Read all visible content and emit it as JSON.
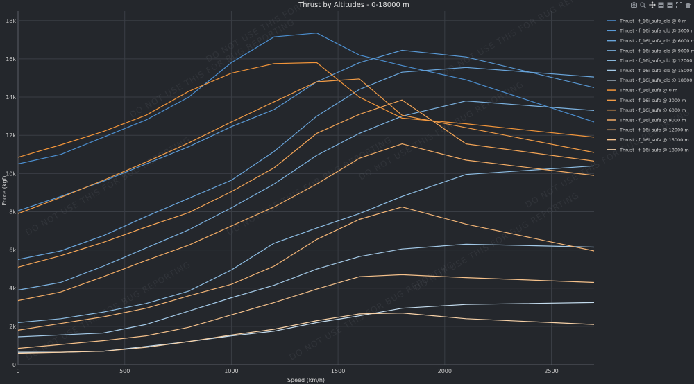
{
  "chart_data": {
    "type": "line",
    "title": "Thrust by Altitudes - 0-18000 m",
    "xlabel": "Speed (km/h)",
    "ylabel": "Force (kgf)",
    "xlim": [
      0,
      2700
    ],
    "ylim": [
      0,
      18500
    ],
    "x_ticks": [
      0,
      500,
      1000,
      1500,
      2000,
      2500
    ],
    "x_tick_labels": [
      "0",
      "500",
      "1000",
      "1500",
      "2000",
      "2500"
    ],
    "y_ticks": [
      0,
      2000,
      4000,
      6000,
      8000,
      10000,
      12000,
      14000,
      16000,
      18000
    ],
    "y_tick_labels": [
      "0",
      "2k",
      "4k",
      "6k",
      "8k",
      "10k",
      "12k",
      "14k",
      "16k",
      "18k"
    ],
    "watermark": "DO NOT USE THIS FOR BUG REPORTING",
    "legend_position": "right",
    "series": [
      {
        "name": "Thrust - f_16i_sufa_old @ 0 m",
        "color": "#4c8fd0",
        "x": [
          0,
          200,
          400,
          600,
          800,
          1000,
          1200,
          1400,
          1600,
          1800,
          2100,
          2700
        ],
        "y": [
          10500,
          11000,
          11900,
          12800,
          14000,
          15800,
          17150,
          17350,
          16200,
          15650,
          14900,
          12700
        ]
      },
      {
        "name": "Thrust - f_16i_sufa_old @ 3000 m",
        "color": "#5a9ad6",
        "x": [
          0,
          200,
          400,
          600,
          800,
          1000,
          1200,
          1400,
          1600,
          1800,
          2100,
          2700
        ],
        "y": [
          8050,
          8800,
          9600,
          10500,
          11400,
          12450,
          13350,
          14800,
          15800,
          16450,
          16100,
          14500
        ]
      },
      {
        "name": "Thrust - f_16i_sufa_old @ 6000 m",
        "color": "#6aa6dc",
        "x": [
          0,
          200,
          400,
          600,
          800,
          1000,
          1200,
          1400,
          1600,
          1800,
          2100,
          2700
        ],
        "y": [
          5500,
          5950,
          6750,
          7750,
          8700,
          9650,
          11150,
          13000,
          14400,
          15300,
          15550,
          15050
        ]
      },
      {
        "name": "Thrust - f_16i_sufa_old @ 9000 m",
        "color": "#7cb2e0",
        "x": [
          0,
          200,
          400,
          600,
          800,
          1000,
          1200,
          1400,
          1600,
          1800,
          2100,
          2700
        ],
        "y": [
          3900,
          4300,
          5150,
          6100,
          7050,
          8200,
          9450,
          10950,
          12100,
          13000,
          13800,
          13300
        ]
      },
      {
        "name": "Thrust - f_16i_sufa_old @ 12000 m",
        "color": "#8ebee4",
        "x": [
          0,
          200,
          400,
          600,
          800,
          1000,
          1200,
          1400,
          1600,
          1800,
          2100,
          2700
        ],
        "y": [
          2200,
          2400,
          2750,
          3200,
          3850,
          4950,
          6350,
          7150,
          7900,
          8800,
          9950,
          10400
        ]
      },
      {
        "name": "Thrust - f_16i_sufa_old @ 15000 m",
        "color": "#a4cae8",
        "x": [
          0,
          200,
          400,
          600,
          800,
          1000,
          1200,
          1400,
          1600,
          1800,
          2100,
          2700
        ],
        "y": [
          1450,
          1550,
          1650,
          2100,
          2800,
          3500,
          4150,
          5000,
          5650,
          6050,
          6300,
          6150
        ]
      },
      {
        "name": "Thrust - f_16i_sufa_old @ 18000 m",
        "color": "#c4dcee",
        "x": [
          0,
          200,
          400,
          600,
          800,
          1000,
          1200,
          1400,
          1600,
          1800,
          2100,
          2700
        ],
        "y": [
          650,
          650,
          700,
          950,
          1200,
          1500,
          1750,
          2200,
          2550,
          2950,
          3150,
          3250
        ]
      },
      {
        "name": "Thrust - f_16i_sufa @ 0 m",
        "color": "#f2953a",
        "x": [
          0,
          200,
          400,
          600,
          800,
          1000,
          1200,
          1400,
          1600,
          1800,
          2100,
          2700
        ],
        "y": [
          10850,
          11500,
          12200,
          13050,
          14300,
          15250,
          15750,
          15800,
          14000,
          12900,
          12600,
          11900
        ]
      },
      {
        "name": "Thrust - f_16i_sufa @ 3000 m",
        "color": "#f29c47",
        "x": [
          0,
          200,
          400,
          600,
          800,
          1000,
          1200,
          1400,
          1600,
          1800,
          2100,
          2700
        ],
        "y": [
          7900,
          8750,
          9650,
          10600,
          11600,
          12700,
          13750,
          14800,
          14950,
          13050,
          12400,
          11100
        ]
      },
      {
        "name": "Thrust - f_16i_sufa @ 6000 m",
        "color": "#f3a456",
        "x": [
          0,
          200,
          400,
          600,
          800,
          1000,
          1200,
          1400,
          1600,
          1800,
          2100,
          2700
        ],
        "y": [
          5100,
          5700,
          6400,
          7200,
          7950,
          9050,
          10300,
          12100,
          13100,
          13850,
          11550,
          10650
        ]
      },
      {
        "name": "Thrust - f_16i_sufa @ 9000 m",
        "color": "#f4ad66",
        "x": [
          0,
          200,
          400,
          600,
          800,
          1000,
          1200,
          1400,
          1600,
          1800,
          2100,
          2700
        ],
        "y": [
          3350,
          3800,
          4600,
          5450,
          6250,
          7250,
          8250,
          9450,
          10800,
          11550,
          10700,
          9900
        ]
      },
      {
        "name": "Thrust - f_16i_sufa @ 12000 m",
        "color": "#f5b677",
        "x": [
          0,
          200,
          400,
          600,
          800,
          1000,
          1200,
          1400,
          1600,
          1800,
          2100,
          2700
        ],
        "y": [
          1800,
          2150,
          2500,
          2950,
          3600,
          4200,
          5150,
          6550,
          7600,
          8250,
          7350,
          5950
        ]
      },
      {
        "name": "Thrust - f_16i_sufa @ 15000 m",
        "color": "#f6c28c",
        "x": [
          0,
          200,
          400,
          600,
          800,
          1000,
          1200,
          1400,
          1600,
          1800,
          2100,
          2700
        ],
        "y": [
          850,
          1050,
          1250,
          1500,
          1950,
          2600,
          3250,
          3950,
          4600,
          4700,
          4550,
          4300
        ]
      },
      {
        "name": "Thrust - f_16i_sufa @ 18000 m",
        "color": "#f8d2a8",
        "x": [
          0,
          200,
          400,
          600,
          800,
          1000,
          1200,
          1400,
          1600,
          1800,
          2100,
          2700
        ],
        "y": [
          600,
          650,
          700,
          900,
          1200,
          1550,
          1850,
          2300,
          2650,
          2700,
          2400,
          2100
        ]
      }
    ]
  },
  "modebar": {
    "icons": [
      "camera-icon",
      "zoom-icon",
      "pan-icon",
      "zoom-in-icon",
      "zoom-out-icon",
      "autoscale-icon",
      "reset-icon"
    ]
  }
}
